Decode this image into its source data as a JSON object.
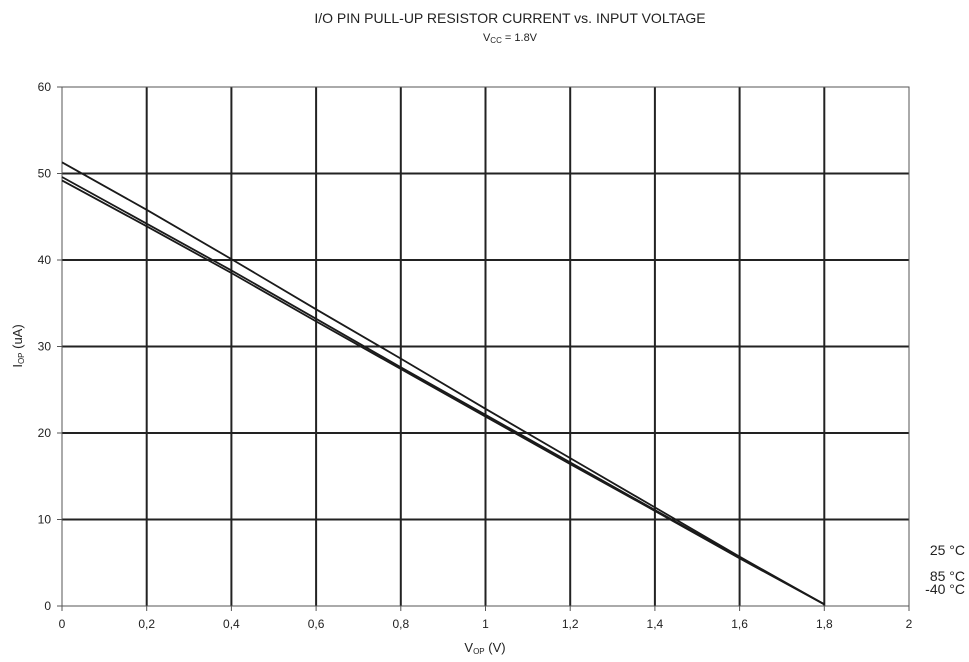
{
  "chart_data": {
    "type": "line",
    "title": "I/O PIN PULL-UP RESISTOR CURRENT vs. INPUT VOLTAGE",
    "subtitle": {
      "main": "V",
      "sub": "CC",
      "rest": " = 1.8V"
    },
    "xlabel": {
      "main": "V",
      "sub": "OP",
      "rest": " (V)"
    },
    "ylabel": {
      "main": "I",
      "sub": "OP",
      "rest": " (uA)"
    },
    "xlim": [
      0,
      2
    ],
    "ylim": [
      0,
      60
    ],
    "xticks": [
      0,
      0.2,
      0.4,
      0.6,
      0.8,
      1,
      1.2,
      1.4,
      1.6,
      1.8,
      2
    ],
    "xtick_labels": [
      "0",
      "0,2",
      "0,4",
      "0,6",
      "0,8",
      "1",
      "1,2",
      "1,4",
      "1,6",
      "1,8",
      "2"
    ],
    "yticks": [
      0,
      10,
      20,
      30,
      40,
      50,
      60
    ],
    "ytick_labels": [
      "0",
      "10",
      "20",
      "30",
      "40",
      "50",
      "60"
    ],
    "grid": true,
    "series": [
      {
        "name": "25 °C",
        "x": [
          0,
          0.2,
          0.4,
          0.6,
          0.8,
          1.0,
          1.2,
          1.4,
          1.6,
          1.8
        ],
        "y": [
          51.3,
          45.8,
          40.1,
          34.3,
          28.6,
          22.8,
          17.1,
          11.4,
          5.7,
          0.2
        ]
      },
      {
        "name": "85 °C",
        "x": [
          0,
          0.2,
          0.4,
          0.6,
          0.8,
          1.0,
          1.2,
          1.4,
          1.6,
          1.8
        ],
        "y": [
          49.6,
          44.2,
          38.8,
          33.2,
          27.6,
          22.1,
          16.6,
          11.1,
          5.6,
          0.2
        ]
      },
      {
        "name": "-40 °C",
        "x": [
          0,
          0.2,
          0.4,
          0.6,
          0.8,
          1.0,
          1.2,
          1.4,
          1.6,
          1.8
        ],
        "y": [
          49.2,
          43.9,
          38.5,
          32.9,
          27.4,
          21.9,
          16.4,
          11.0,
          5.5,
          0.2
        ]
      }
    ]
  }
}
